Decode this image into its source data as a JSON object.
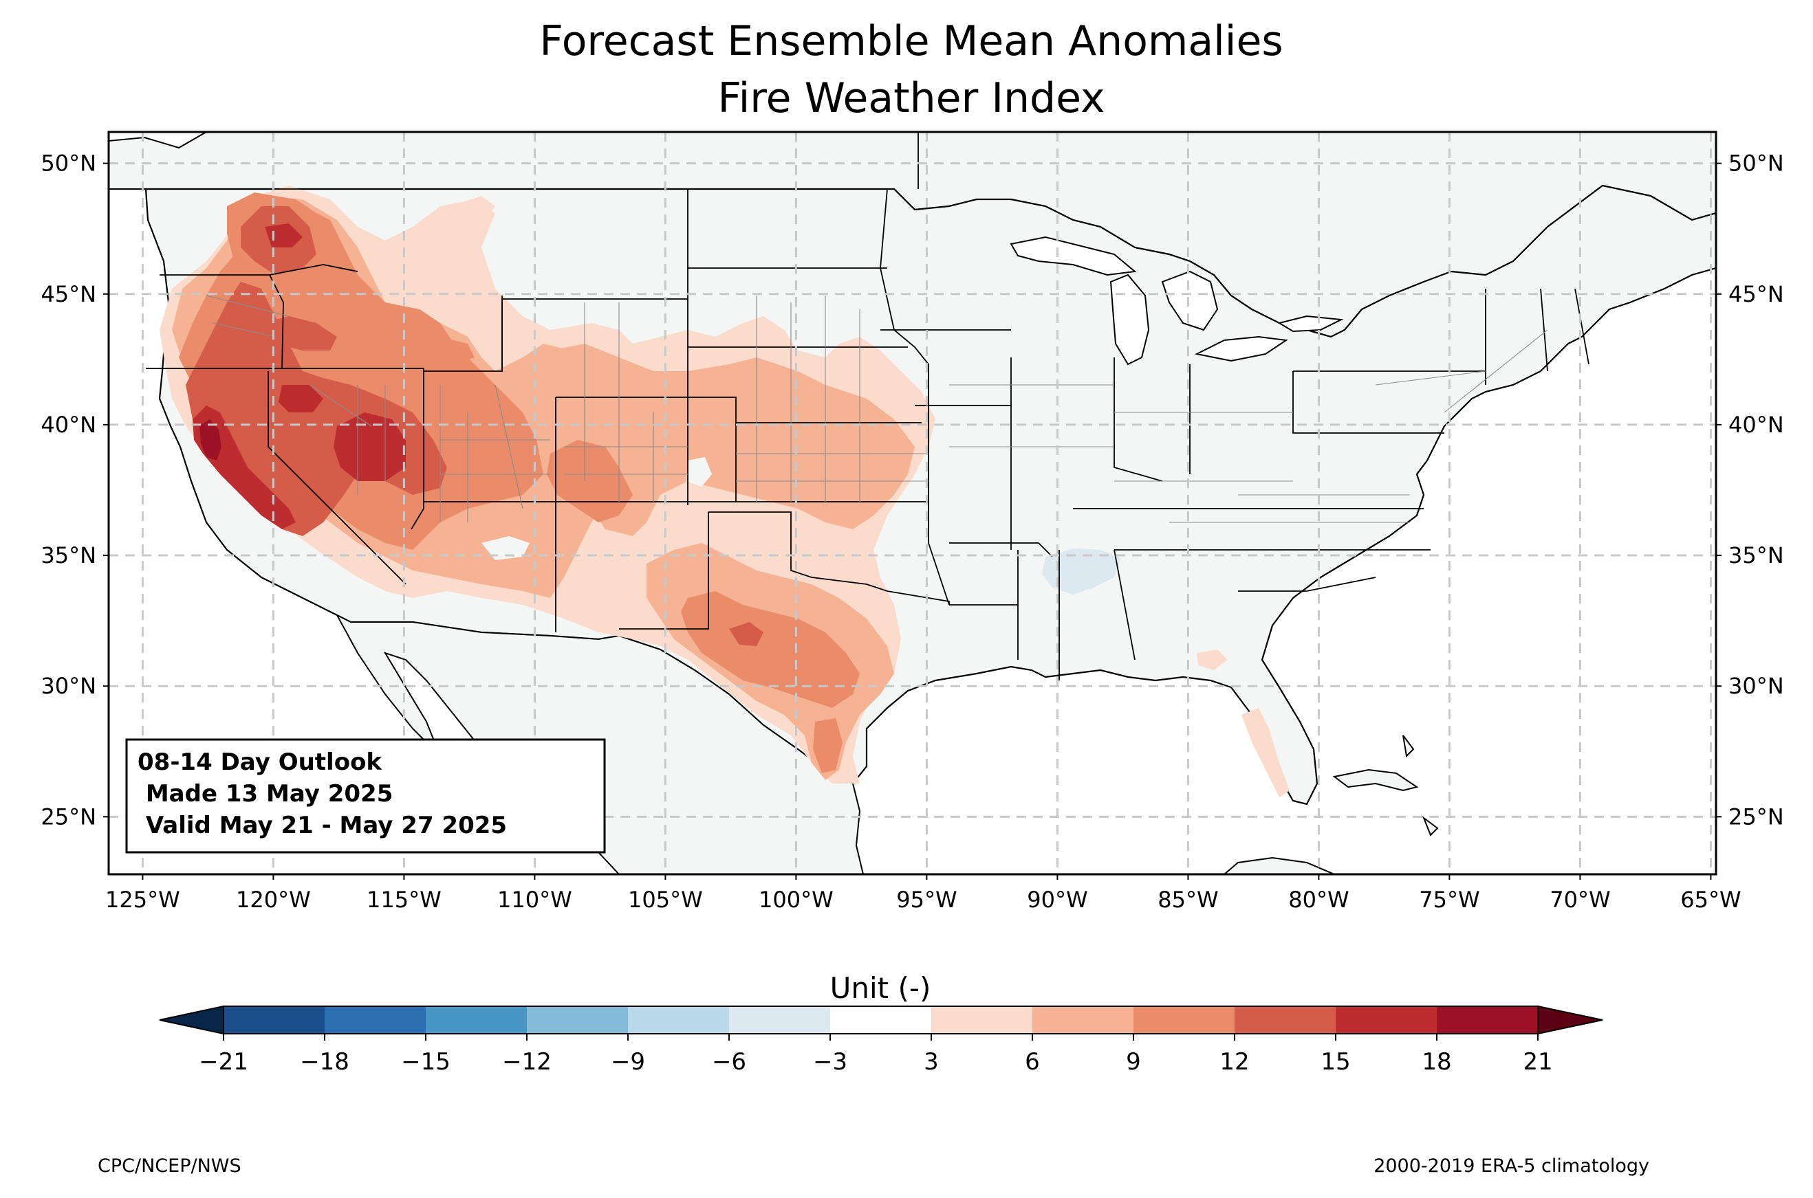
{
  "title": {
    "line1": "Forecast Ensemble Mean Anomalies",
    "line2": "Fire Weather Index"
  },
  "map": {
    "lon_range": [
      -126.3,
      -64.8
    ],
    "lat_range": [
      22.8,
      51.2
    ],
    "lon_ticks": [
      "125°W",
      "120°W",
      "115°W",
      "110°W",
      "105°W",
      "100°W",
      "95°W",
      "90°W",
      "85°W",
      "80°W",
      "75°W",
      "70°W",
      "65°W"
    ],
    "lat_ticks": [
      "25°N",
      "30°N",
      "35°N",
      "40°N",
      "45°N",
      "50°N"
    ],
    "lon_values": [
      -125,
      -120,
      -115,
      -110,
      -105,
      -100,
      -95,
      -90,
      -85,
      -80,
      -75,
      -70,
      -65
    ],
    "lat_values": [
      25,
      30,
      35,
      40,
      45,
      50
    ],
    "gridlines": true,
    "land_color": "#f4f6f6",
    "ocean_color": "#ffffff"
  },
  "info_box": {
    "line1": "08-14 Day Outlook",
    "line2": " Made 13 May 2025",
    "line3": " Valid May 21 - May 27 2025"
  },
  "colorbar": {
    "label": "Unit (-)",
    "boundaries": [
      -21,
      -18,
      -15,
      -12,
      -9,
      -6,
      -3,
      3,
      6,
      9,
      12,
      15,
      18,
      21
    ],
    "tick_labels": [
      "−21",
      "−18",
      "−15",
      "−12",
      "−9",
      "−6",
      "−3",
      "3",
      "6",
      "9",
      "12",
      "15",
      "18",
      "21"
    ],
    "colors": [
      "#1a4f8c",
      "#2c6fb0",
      "#4896c4",
      "#83bbd9",
      "#b9d8ea",
      "#dde9f1",
      "#ffffff",
      "#fbdccc",
      "#f6b394",
      "#ea8b6a",
      "#d65c4a",
      "#bd2d2f",
      "#9c1126"
    ],
    "under_color": "#08264a",
    "over_color": "#5c0014"
  },
  "anomaly_regions": [
    {
      "level": "3-6",
      "color": "#fbdccc",
      "area": "Western US broad warm anomaly"
    },
    {
      "level": "6-9",
      "color": "#f6b394",
      "area": "Great Basin, Central Plains, Texas"
    },
    {
      "level": "9-12",
      "color": "#ea8b6a",
      "area": "Nevada, Utah, Oregon, West Texas"
    },
    {
      "level": "12-15",
      "color": "#d65c4a",
      "area": "Northern Nevada, Central Utah"
    },
    {
      "level": "15-18",
      "color": "#bd2d2f",
      "area": "Central California, Utah core"
    },
    {
      "level": "18-21",
      "color": "#9c1126",
      "area": "Northern California interior"
    },
    {
      "level": "-6--3",
      "color": "#dde9f1",
      "area": "Northern Mississippi/Alabama"
    }
  ],
  "footer": {
    "left": "CPC/NCEP/NWS",
    "right": "2000-2019 ERA-5 climatology"
  }
}
